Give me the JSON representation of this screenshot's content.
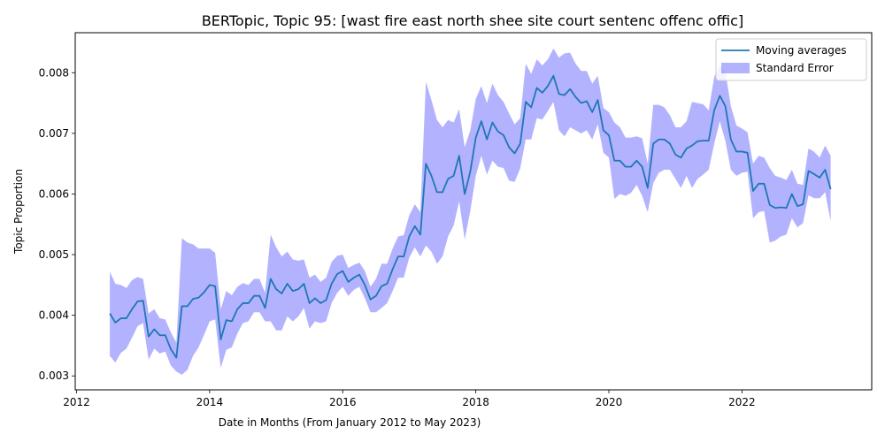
{
  "chart_data": {
    "type": "line",
    "title": "BERTopic, Topic 95: [wast fire east north shee site court sentenc offenc offic]",
    "xlabel": "Date in Months (From January 2012 to May 2023)",
    "ylabel": "Topic Proportion",
    "xlim": [
      2011.98,
      2023.95
    ],
    "ylim": [
      0.00277,
      0.00866
    ],
    "x_ticks": [
      2012,
      2014,
      2016,
      2018,
      2020,
      2022
    ],
    "x_tick_labels": [
      "2012",
      "2014",
      "2016",
      "2018",
      "2020",
      "2022"
    ],
    "y_ticks": [
      0.003,
      0.004,
      0.005,
      0.006,
      0.007,
      0.008
    ],
    "y_tick_labels": [
      "0.003",
      "0.004",
      "0.005",
      "0.006",
      "0.007",
      "0.008"
    ],
    "grid": false,
    "legend_position": "top-right",
    "colors": {
      "line": "#1f77b4",
      "band": "#0000ff"
    },
    "series": [
      {
        "name": "Moving averages",
        "kind": "line",
        "x": [
          2012.5,
          2012.583,
          2012.667,
          2012.75,
          2012.833,
          2012.917,
          2013.0,
          2013.083,
          2013.167,
          2013.25,
          2013.333,
          2013.417,
          2013.5,
          2013.583,
          2013.667,
          2013.75,
          2013.833,
          2013.917,
          2014.0,
          2014.083,
          2014.167,
          2014.25,
          2014.333,
          2014.417,
          2014.5,
          2014.583,
          2014.667,
          2014.75,
          2014.833,
          2014.917,
          2015.0,
          2015.083,
          2015.167,
          2015.25,
          2015.333,
          2015.417,
          2015.5,
          2015.583,
          2015.667,
          2015.75,
          2015.833,
          2015.917,
          2016.0,
          2016.083,
          2016.167,
          2016.25,
          2016.333,
          2016.417,
          2016.5,
          2016.583,
          2016.667,
          2016.75,
          2016.833,
          2016.917,
          2017.0,
          2017.083,
          2017.167,
          2017.25,
          2017.333,
          2017.417,
          2017.5,
          2017.583,
          2017.667,
          2017.75,
          2017.833,
          2017.917,
          2018.0,
          2018.083,
          2018.167,
          2018.25,
          2018.333,
          2018.417,
          2018.5,
          2018.583,
          2018.667,
          2018.75,
          2018.833,
          2018.917,
          2019.0,
          2019.083,
          2019.167,
          2019.25,
          2019.333,
          2019.417,
          2019.5,
          2019.583,
          2019.667,
          2019.75,
          2019.833,
          2019.917,
          2020.0,
          2020.083,
          2020.167,
          2020.25,
          2020.333,
          2020.417,
          2020.5,
          2020.583,
          2020.667,
          2020.75,
          2020.833,
          2020.917,
          2021.0,
          2021.083,
          2021.167,
          2021.25,
          2021.333,
          2021.417,
          2021.5,
          2021.583,
          2021.667,
          2021.75,
          2021.833,
          2021.917,
          2022.0,
          2022.083,
          2022.167,
          2022.25,
          2022.333,
          2022.417,
          2022.5,
          2022.583,
          2022.667,
          2022.75,
          2022.833,
          2022.917,
          2023.0,
          2023.083,
          2023.167,
          2023.25,
          2023.333
        ],
        "y": [
          0.00403,
          0.00388,
          0.00395,
          0.00395,
          0.0041,
          0.00423,
          0.00424,
          0.00365,
          0.00377,
          0.00367,
          0.00367,
          0.00344,
          0.0033,
          0.00415,
          0.00415,
          0.00427,
          0.00429,
          0.00438,
          0.0045,
          0.00448,
          0.0036,
          0.00392,
          0.0039,
          0.0041,
          0.0042,
          0.0042,
          0.00432,
          0.00432,
          0.00412,
          0.0046,
          0.00443,
          0.00436,
          0.00452,
          0.0044,
          0.00443,
          0.00452,
          0.0042,
          0.00428,
          0.0042,
          0.00425,
          0.00452,
          0.00468,
          0.00473,
          0.00455,
          0.00462,
          0.00467,
          0.0045,
          0.00426,
          0.00432,
          0.00448,
          0.00452,
          0.00476,
          0.00497,
          0.00497,
          0.0053,
          0.00547,
          0.00533,
          0.0065,
          0.0063,
          0.00603,
          0.00603,
          0.00625,
          0.0063,
          0.00663,
          0.006,
          0.00637,
          0.00693,
          0.0072,
          0.0069,
          0.00718,
          0.00703,
          0.00697,
          0.00677,
          0.00667,
          0.00683,
          0.00752,
          0.00743,
          0.00775,
          0.00767,
          0.00778,
          0.00795,
          0.00765,
          0.00763,
          0.00773,
          0.0076,
          0.0075,
          0.00753,
          0.00735,
          0.00755,
          0.00705,
          0.00697,
          0.00655,
          0.00655,
          0.00645,
          0.00645,
          0.00655,
          0.00645,
          0.0061,
          0.00683,
          0.0069,
          0.0069,
          0.00683,
          0.00665,
          0.0066,
          0.00675,
          0.0068,
          0.00687,
          0.00688,
          0.00688,
          0.00738,
          0.00762,
          0.00745,
          0.0069,
          0.0067,
          0.0067,
          0.00668,
          0.00605,
          0.00617,
          0.00617,
          0.00582,
          0.00577,
          0.00578,
          0.00577,
          0.006,
          0.0058,
          0.00583,
          0.00638,
          0.00633,
          0.00627,
          0.0064,
          0.00608
        ]
      },
      {
        "name": "Standard Error",
        "kind": "band",
        "x": [
          2012.5,
          2012.583,
          2012.667,
          2012.75,
          2012.833,
          2012.917,
          2013.0,
          2013.083,
          2013.167,
          2013.25,
          2013.333,
          2013.417,
          2013.5,
          2013.583,
          2013.667,
          2013.75,
          2013.833,
          2013.917,
          2014.0,
          2014.083,
          2014.167,
          2014.25,
          2014.333,
          2014.417,
          2014.5,
          2014.583,
          2014.667,
          2014.75,
          2014.833,
          2014.917,
          2015.0,
          2015.083,
          2015.167,
          2015.25,
          2015.333,
          2015.417,
          2015.5,
          2015.583,
          2015.667,
          2015.75,
          2015.833,
          2015.917,
          2016.0,
          2016.083,
          2016.167,
          2016.25,
          2016.333,
          2016.417,
          2016.5,
          2016.583,
          2016.667,
          2016.75,
          2016.833,
          2016.917,
          2017.0,
          2017.083,
          2017.167,
          2017.25,
          2017.333,
          2017.417,
          2017.5,
          2017.583,
          2017.667,
          2017.75,
          2017.833,
          2017.917,
          2018.0,
          2018.083,
          2018.167,
          2018.25,
          2018.333,
          2018.417,
          2018.5,
          2018.583,
          2018.667,
          2018.75,
          2018.833,
          2018.917,
          2019.0,
          2019.083,
          2019.167,
          2019.25,
          2019.333,
          2019.417,
          2019.5,
          2019.583,
          2019.667,
          2019.75,
          2019.833,
          2019.917,
          2020.0,
          2020.083,
          2020.167,
          2020.25,
          2020.333,
          2020.417,
          2020.5,
          2020.583,
          2020.667,
          2020.75,
          2020.833,
          2020.917,
          2021.0,
          2021.083,
          2021.167,
          2021.25,
          2021.333,
          2021.417,
          2021.5,
          2021.583,
          2021.667,
          2021.75,
          2021.833,
          2021.917,
          2022.0,
          2022.083,
          2022.167,
          2022.25,
          2022.333,
          2022.417,
          2022.5,
          2022.583,
          2022.667,
          2022.75,
          2022.833,
          2022.917,
          2023.0,
          2023.083,
          2023.167,
          2023.25,
          2023.333
        ],
        "lower": [
          0.00333,
          0.00322,
          0.00338,
          0.00345,
          0.00363,
          0.00382,
          0.00387,
          0.00327,
          0.00345,
          0.00337,
          0.0034,
          0.00317,
          0.00307,
          0.00302,
          0.0031,
          0.00333,
          0.00347,
          0.00368,
          0.0039,
          0.00393,
          0.00313,
          0.00343,
          0.00347,
          0.0037,
          0.00387,
          0.0039,
          0.00405,
          0.00405,
          0.0039,
          0.0039,
          0.00375,
          0.00375,
          0.00398,
          0.0039,
          0.00398,
          0.00412,
          0.00378,
          0.0039,
          0.00387,
          0.0039,
          0.0042,
          0.00437,
          0.00447,
          0.00432,
          0.00442,
          0.00447,
          0.00428,
          0.00405,
          0.00405,
          0.00412,
          0.0042,
          0.0044,
          0.00462,
          0.00462,
          0.00495,
          0.00512,
          0.00497,
          0.00515,
          0.00505,
          0.00485,
          0.00497,
          0.0053,
          0.00548,
          0.00588,
          0.00525,
          0.00572,
          0.0063,
          0.00663,
          0.00632,
          0.00655,
          0.00645,
          0.00643,
          0.00622,
          0.0062,
          0.00642,
          0.0069,
          0.0069,
          0.00725,
          0.00723,
          0.00737,
          0.00752,
          0.00705,
          0.00695,
          0.0071,
          0.00705,
          0.007,
          0.00705,
          0.0069,
          0.00715,
          0.00668,
          0.0066,
          0.00592,
          0.006,
          0.00597,
          0.00602,
          0.00615,
          0.00597,
          0.0057,
          0.00618,
          0.00635,
          0.0064,
          0.0064,
          0.00625,
          0.0061,
          0.0063,
          0.0061,
          0.00625,
          0.00632,
          0.0064,
          0.00683,
          0.0072,
          0.00688,
          0.0064,
          0.0063,
          0.00635,
          0.00637,
          0.0056,
          0.0057,
          0.00572,
          0.0052,
          0.00523,
          0.0053,
          0.00533,
          0.0056,
          0.00545,
          0.00552,
          0.00598,
          0.00593,
          0.00593,
          0.00603,
          0.00555
        ],
        "upper": [
          0.00472,
          0.00452,
          0.0045,
          0.00445,
          0.00458,
          0.00463,
          0.0046,
          0.00403,
          0.0041,
          0.00395,
          0.00393,
          0.00372,
          0.00355,
          0.00527,
          0.0052,
          0.00517,
          0.0051,
          0.0051,
          0.0051,
          0.00503,
          0.0041,
          0.0044,
          0.00433,
          0.00447,
          0.00453,
          0.0045,
          0.0046,
          0.0046,
          0.00437,
          0.00533,
          0.00512,
          0.00497,
          0.00505,
          0.00492,
          0.0049,
          0.00492,
          0.00462,
          0.00467,
          0.00455,
          0.00462,
          0.00488,
          0.00498,
          0.005,
          0.00478,
          0.00483,
          0.00487,
          0.00473,
          0.00447,
          0.0046,
          0.00485,
          0.00485,
          0.0051,
          0.0053,
          0.00532,
          0.00565,
          0.00583,
          0.0057,
          0.00785,
          0.00755,
          0.00722,
          0.0071,
          0.00722,
          0.00718,
          0.0074,
          0.00677,
          0.00705,
          0.00757,
          0.00778,
          0.0075,
          0.00782,
          0.00763,
          0.00752,
          0.00733,
          0.00715,
          0.00725,
          0.00815,
          0.00798,
          0.00822,
          0.00812,
          0.00822,
          0.0084,
          0.00825,
          0.00832,
          0.00833,
          0.00815,
          0.00803,
          0.00803,
          0.00782,
          0.00795,
          0.00742,
          0.00735,
          0.00718,
          0.0071,
          0.00693,
          0.00693,
          0.00695,
          0.00692,
          0.0065,
          0.00747,
          0.00747,
          0.00743,
          0.0073,
          0.0071,
          0.0071,
          0.0072,
          0.00752,
          0.0075,
          0.00748,
          0.00738,
          0.00793,
          0.00812,
          0.00802,
          0.00745,
          0.00713,
          0.00708,
          0.00702,
          0.0065,
          0.00663,
          0.0066,
          0.00643,
          0.0063,
          0.00627,
          0.00623,
          0.0064,
          0.00617,
          0.00615,
          0.00675,
          0.0067,
          0.0066,
          0.0068,
          0.00663
        ]
      }
    ]
  }
}
